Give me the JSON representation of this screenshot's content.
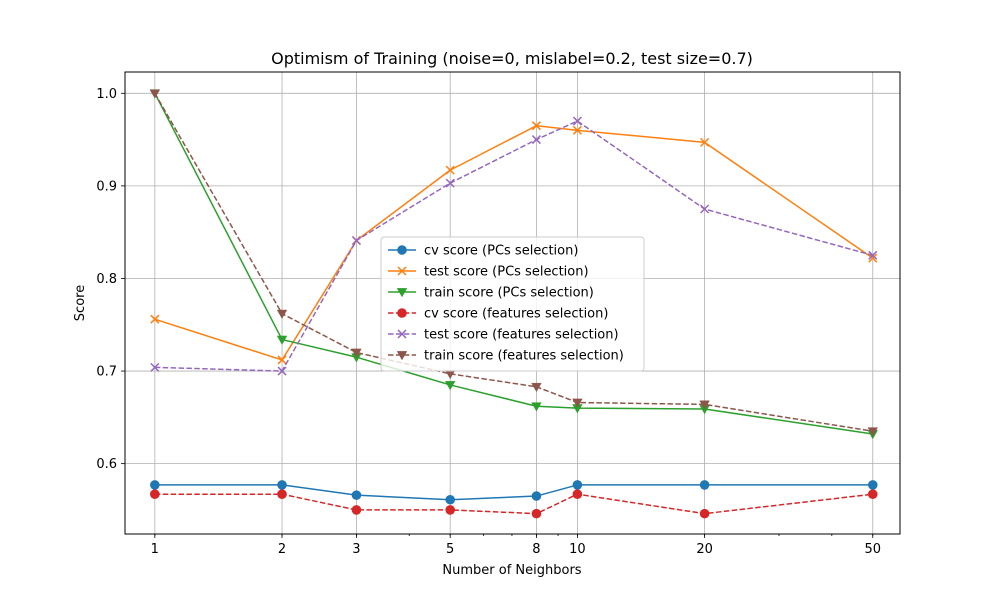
{
  "chart_data": {
    "type": "line",
    "title": "Optimism of Training (noise=0, mislabel=0.2, test size=0.7)",
    "xlabel": "Number of Neighbors",
    "ylabel": "Score",
    "xscale": "log",
    "x": [
      1,
      2,
      3,
      5,
      8,
      10,
      20,
      50
    ],
    "xtick_labels": [
      "1",
      "2",
      "3",
      "5",
      "8",
      "10",
      "20",
      "50"
    ],
    "xlim": [
      0.85,
      58
    ],
    "ylim": [
      0.524,
      1.023
    ],
    "yticks": [
      0.6,
      0.7,
      0.8,
      0.9,
      1.0
    ],
    "ytick_labels": [
      "0.6",
      "0.7",
      "0.8",
      "0.9",
      "1.0"
    ],
    "grid": true,
    "legend_position": "center",
    "series": [
      {
        "name": "cv score (PCs selection)",
        "color": "#1f77b4",
        "marker": "circle",
        "dash": "solid",
        "values": [
          0.577,
          0.577,
          0.566,
          0.561,
          0.565,
          0.577,
          0.577,
          0.577
        ]
      },
      {
        "name": "test score (PCs selection)",
        "color": "#ff7f0e",
        "marker": "x",
        "dash": "solid",
        "values": [
          0.756,
          0.712,
          0.841,
          0.917,
          0.965,
          0.96,
          0.947,
          0.822
        ]
      },
      {
        "name": "train score (PCs selection)",
        "color": "#2ca02c",
        "marker": "triangle-down",
        "dash": "solid",
        "values": [
          1.0,
          0.734,
          0.715,
          0.685,
          0.662,
          0.66,
          0.659,
          0.632
        ]
      },
      {
        "name": "cv score (features selection)",
        "color": "#d62728",
        "marker": "circle",
        "dash": "dashed",
        "values": [
          0.567,
          0.567,
          0.55,
          0.55,
          0.546,
          0.567,
          0.546,
          0.567
        ]
      },
      {
        "name": "test score (features selection)",
        "color": "#9467bd",
        "marker": "x",
        "dash": "dashed",
        "values": [
          0.704,
          0.7,
          0.841,
          0.903,
          0.95,
          0.97,
          0.875,
          0.825
        ]
      },
      {
        "name": "train score (features selection)",
        "color": "#8c564b",
        "marker": "triangle-down",
        "dash": "dashed",
        "values": [
          1.0,
          0.762,
          0.72,
          0.697,
          0.683,
          0.666,
          0.664,
          0.635
        ]
      }
    ]
  }
}
